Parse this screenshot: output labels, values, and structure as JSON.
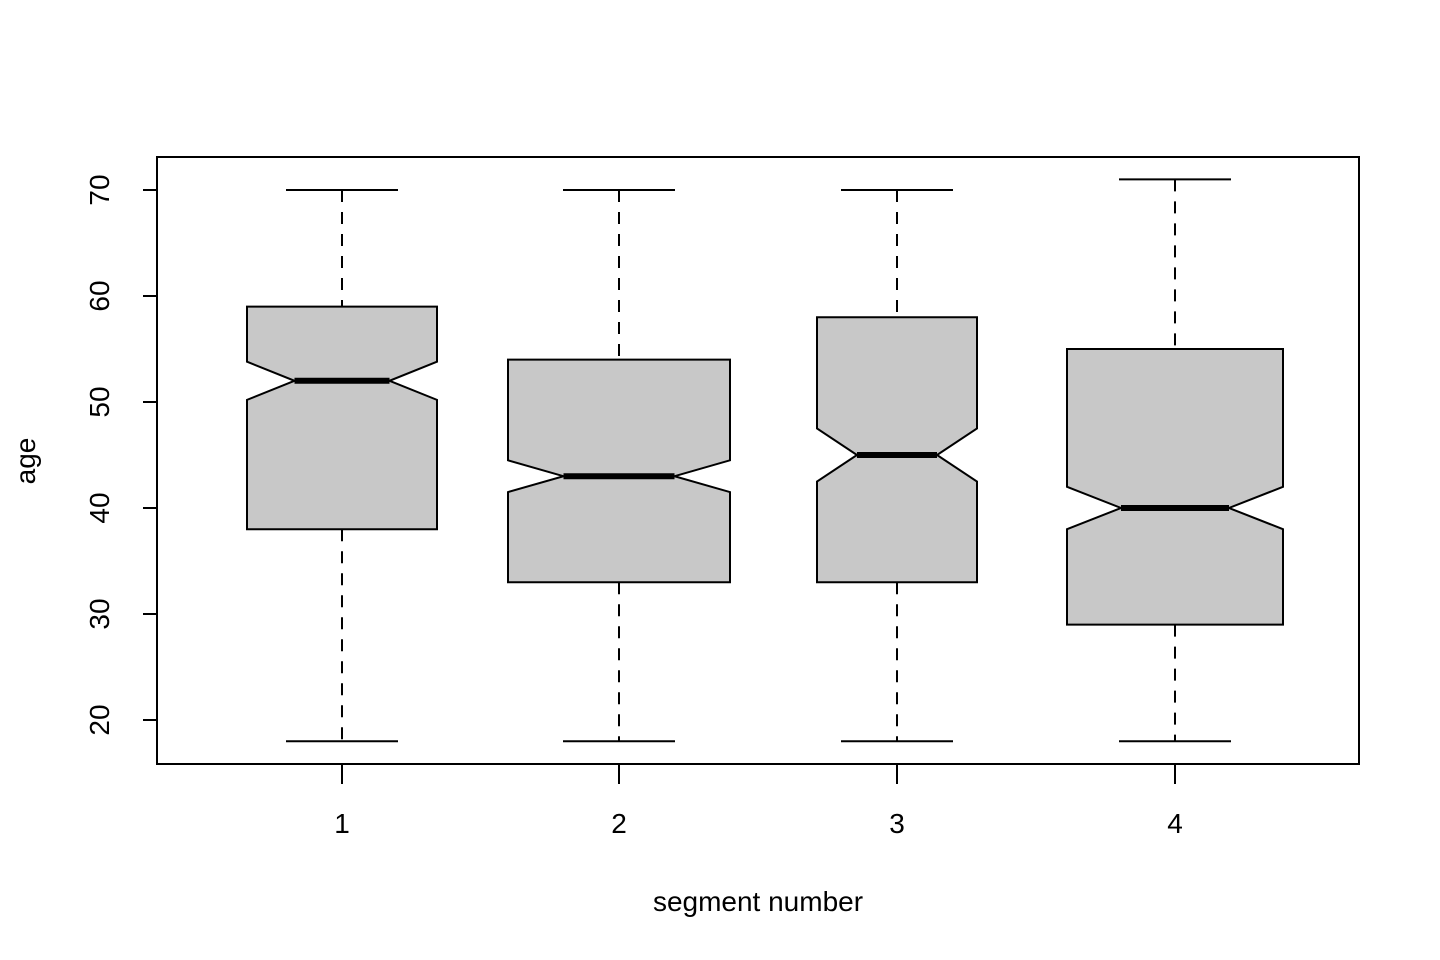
{
  "chart_data": {
    "type": "boxplot",
    "notched": true,
    "title": "",
    "xlabel": "segment number",
    "ylabel": "age",
    "categories": [
      "1",
      "2",
      "3",
      "4"
    ],
    "ylim": [
      16,
      73
    ],
    "yticks": [
      20,
      30,
      40,
      50,
      60,
      70
    ],
    "grid": false,
    "box_fill": "#C8C8C8",
    "boxes": [
      {
        "category": "1",
        "whisker_low": 18,
        "q1": 38,
        "median": 52,
        "q3": 59,
        "whisker_high": 70,
        "notch_low": 50.2,
        "notch_high": 53.8
      },
      {
        "category": "2",
        "whisker_low": 18,
        "q1": 33,
        "median": 43,
        "q3": 54,
        "whisker_high": 70,
        "notch_low": 41.5,
        "notch_high": 44.5
      },
      {
        "category": "3",
        "whisker_low": 18,
        "q1": 33,
        "median": 45,
        "q3": 58,
        "whisker_high": 70,
        "notch_low": 42.5,
        "notch_high": 47.5
      },
      {
        "category": "4",
        "whisker_low": 18,
        "q1": 29,
        "median": 40,
        "q3": 55,
        "whisker_high": 71,
        "notch_low": 38.0,
        "notch_high": 42.0
      }
    ]
  }
}
